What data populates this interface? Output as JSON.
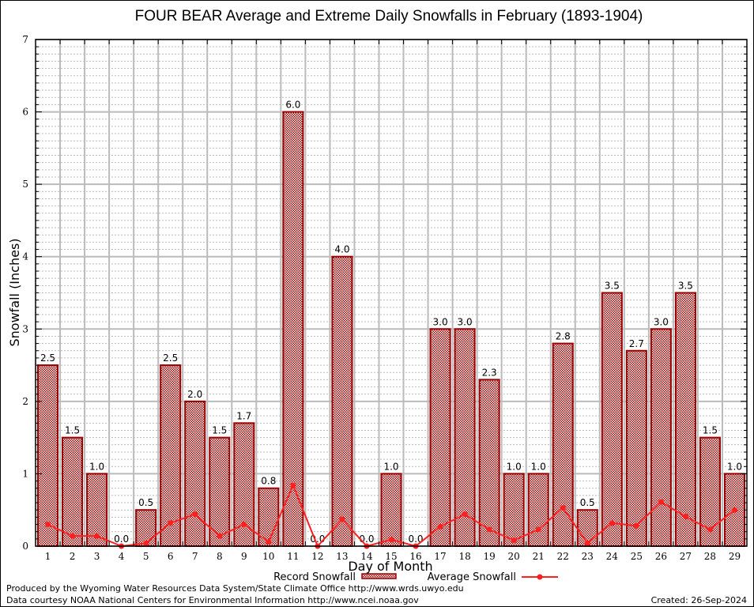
{
  "chart_data": {
    "type": "bar",
    "title": "FOUR BEAR Average and Extreme Daily Snowfalls in February (1893-1904)",
    "xlabel": "Day of Month",
    "ylabel": "Snowfall (Inches)",
    "ylim": [
      0,
      7
    ],
    "yticks": [
      "0",
      "1",
      "2",
      "3",
      "4",
      "5",
      "6",
      "7"
    ],
    "grid": true,
    "categories": [
      "1",
      "2",
      "3",
      "4",
      "5",
      "6",
      "7",
      "8",
      "9",
      "10",
      "11",
      "12",
      "13",
      "14",
      "15",
      "16",
      "17",
      "18",
      "19",
      "20",
      "21",
      "22",
      "23",
      "24",
      "25",
      "26",
      "27",
      "28",
      "29"
    ],
    "series": [
      {
        "name": "Record Snowfall",
        "type": "bar",
        "color": "#990000",
        "values": [
          2.5,
          1.5,
          1.0,
          0.0,
          0.5,
          2.5,
          2.0,
          1.5,
          1.7,
          0.8,
          6.0,
          0.0,
          4.0,
          0.0,
          1.0,
          0.0,
          3.0,
          3.0,
          2.3,
          1.0,
          1.0,
          2.8,
          0.5,
          3.5,
          2.7,
          3.0,
          3.5,
          1.5,
          1.0
        ],
        "labels": [
          "2.5",
          "1.5",
          "1.0",
          "0.0",
          "0.5",
          "2.5",
          "2.0",
          "1.5",
          "1.7",
          "0.8",
          "6.0",
          "0.0",
          "4.0",
          "0.0",
          "1.0",
          "0.0",
          "3.0",
          "3.0",
          "2.3",
          "1.0",
          "1.0",
          "2.8",
          "0.5",
          "3.5",
          "2.7",
          "3.0",
          "3.5",
          "1.5",
          "1.0"
        ]
      },
      {
        "name": "Average Snowfall",
        "type": "line",
        "color": "#ff2020",
        "values": [
          0.3,
          0.14,
          0.14,
          0.0,
          0.04,
          0.32,
          0.44,
          0.14,
          0.3,
          0.06,
          0.84,
          0.0,
          0.37,
          0.0,
          0.09,
          0.0,
          0.27,
          0.44,
          0.23,
          0.08,
          0.23,
          0.53,
          0.04,
          0.32,
          0.28,
          0.61,
          0.41,
          0.23,
          0.5
        ]
      }
    ],
    "legend": "bottom-center"
  },
  "footer": {
    "line1": "Produced by the Wyoming Water Resources Data System/State Climate Office http://www.wrds.uwyo.edu",
    "line2": "Data courtesy NOAA National Centers for Environmental Information http://www.ncei.noaa.gov",
    "created": "Created: 26-Sep-2024"
  }
}
